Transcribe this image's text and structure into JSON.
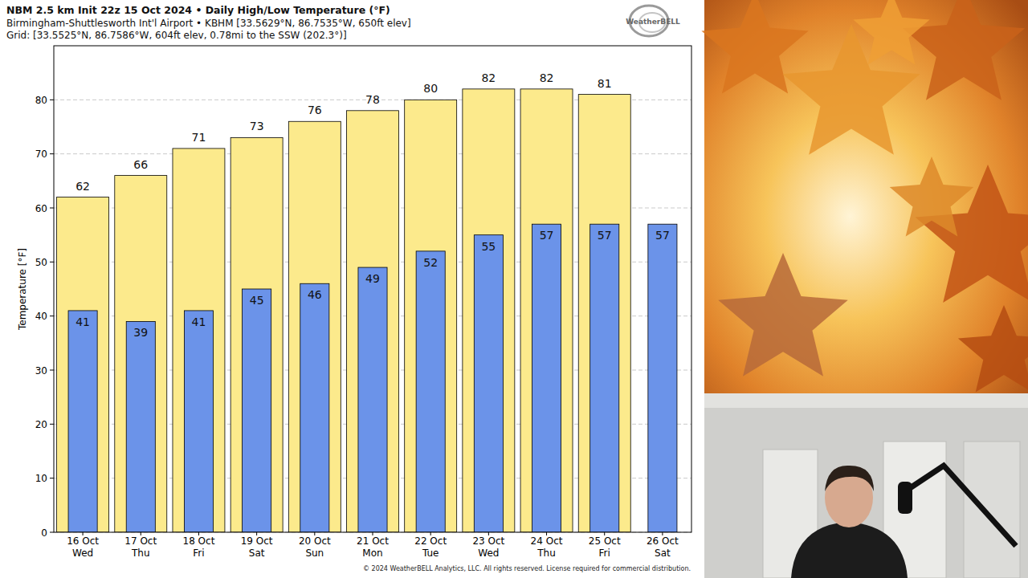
{
  "chart_data": {
    "type": "bar",
    "title": "NBM 2.5 km Init 22z 15 Oct 2024 • Daily High/Low Temperature (°F)",
    "subtitle": "Birmingham-Shuttlesworth Int'l Airport • KBHM [33.5629°N, 86.7535°W, 650ft elev]",
    "annotations": [
      "Grid: [33.5525°N, 86.7586°W, 604ft elev, 0.78mi to the SSW (202.3°)]",
      "© 2024 WeatherBELL Analytics, LLC. All rights reserved. License required for commercial distribution.",
      "WeatherBELL"
    ],
    "y_label": "Temperature [°F]",
    "categories": [
      "16 Oct\nWed",
      "17 Oct\nThu",
      "18 Oct\nFri",
      "19 Oct\nSat",
      "20 Oct\nSun",
      "21 Oct\nMon",
      "22 Oct\nTue",
      "23 Oct\nWed",
      "24 Oct\nThu",
      "25 Oct\nFri",
      "26 Oct\nSat"
    ],
    "series": [
      {
        "color": "#fcea8c",
        "values": [
          62,
          66,
          71,
          73,
          76,
          78,
          80,
          82,
          82,
          81,
          null
        ]
      },
      {
        "color": "#6b93e9",
        "values": [
          41,
          39,
          41,
          45,
          46,
          49,
          52,
          55,
          57,
          57,
          57
        ]
      }
    ],
    "ylim": [
      0,
      90
    ],
    "yticks": [
      0,
      10,
      20,
      30,
      40,
      50,
      60,
      70,
      80
    ],
    "grid": true,
    "data_labels": true
  }
}
